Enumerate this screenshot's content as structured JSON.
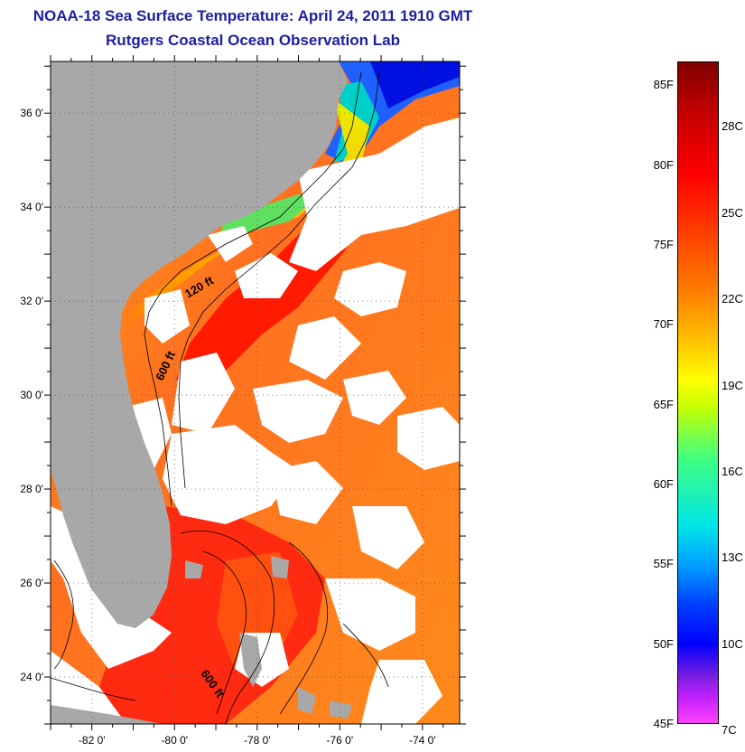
{
  "header": {
    "title": "NOAA-18 Sea Surface Temperature:  April 24, 2011 1910 GMT",
    "subtitle": "Rutgers Coastal Ocean Observation Lab"
  },
  "map": {
    "lat_labels": [
      "36 0'",
      "34 0'",
      "32 0'",
      "30 0'",
      "28 0'",
      "26 0'",
      "24 0'"
    ],
    "lat_values": [
      36,
      34,
      32,
      30,
      28,
      26,
      24
    ],
    "lon_labels": [
      "-82 0'",
      "-80 0'",
      "-78 0'",
      "-76 0'",
      "-74 0'"
    ],
    "lon_values": [
      -82,
      -80,
      -78,
      -76,
      -74
    ],
    "lat_range": [
      23,
      37.1
    ],
    "lon_range": [
      -83,
      -73.1
    ],
    "contour_labels": [
      "120 ft",
      "600 ft",
      "600 ft"
    ],
    "colors": {
      "land": "#a8a8a8",
      "cloud": "#ffffff",
      "warm": "#ff2a00",
      "mid": "#ff7a10",
      "cool": "#ffe600"
    }
  },
  "colorbar": {
    "f_labels": [
      "85F",
      "80F",
      "75F",
      "70F",
      "65F",
      "60F",
      "55F",
      "50F",
      "45F"
    ],
    "c_labels": [
      "28C",
      "25C",
      "22C",
      "19C",
      "16C",
      "13C",
      "10C",
      "7C"
    ]
  }
}
